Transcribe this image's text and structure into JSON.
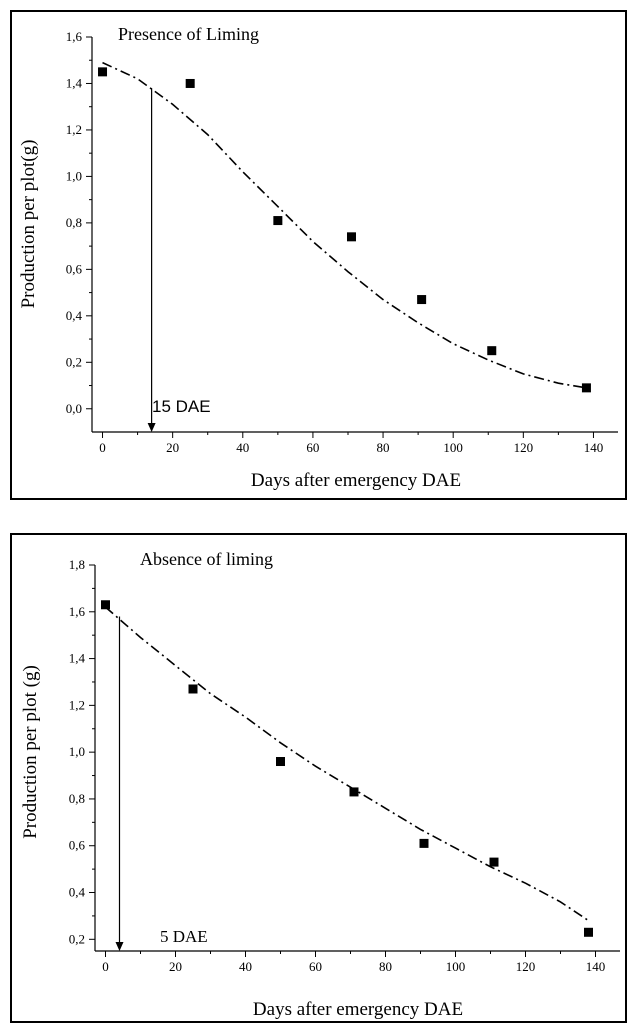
{
  "chart_data": [
    {
      "type": "scatter",
      "title": "Presence of Liming",
      "xlabel": "Days after emergency DAE",
      "ylabel": "Production per plot(g)",
      "xlim": [
        -3,
        147
      ],
      "ylim": [
        -0.1,
        1.6
      ],
      "xticks": [
        "0",
        "20",
        "40",
        "60",
        "80",
        "100",
        "120",
        "140"
      ],
      "yticks": [
        "0,0",
        "0,2",
        "0,4",
        "0,6",
        "0,8",
        "1,0",
        "1,2",
        "1,4",
        "1,6"
      ],
      "series": [
        {
          "x": [
            0,
            25,
            50,
            71,
            91,
            111,
            138
          ],
          "y": [
            1.45,
            1.4,
            0.81,
            0.74,
            0.47,
            0.25,
            0.09
          ]
        }
      ],
      "fit_curve": {
        "x": [
          0,
          10,
          20,
          30,
          40,
          50,
          60,
          70,
          80,
          90,
          100,
          110,
          120,
          130,
          138
        ],
        "y": [
          1.49,
          1.42,
          1.31,
          1.18,
          1.02,
          0.87,
          0.72,
          0.59,
          0.47,
          0.37,
          0.28,
          0.21,
          0.15,
          0.11,
          0.09
        ]
      },
      "annotation": {
        "label": "15 DAE",
        "x": 14
      }
    },
    {
      "type": "scatter",
      "title": "Absence of liming",
      "xlabel": "Days after emergency DAE",
      "ylabel": "Production per plot  (g)",
      "xlim": [
        -3,
        147
      ],
      "ylim": [
        0.15,
        1.8
      ],
      "xticks": [
        "0",
        "20",
        "40",
        "60",
        "80",
        "100",
        "120",
        "140"
      ],
      "yticks": [
        "0,2",
        "0,4",
        "0,6",
        "0,8",
        "1,0",
        "1,2",
        "1,4",
        "1,6",
        "1,8"
      ],
      "series": [
        {
          "x": [
            0,
            25,
            50,
            71,
            91,
            111,
            138
          ],
          "y": [
            1.63,
            1.27,
            0.96,
            0.83,
            0.61,
            0.53,
            0.23
          ]
        }
      ],
      "fit_curve": {
        "x": [
          0,
          10,
          20,
          30,
          40,
          50,
          60,
          70,
          80,
          90,
          100,
          110,
          120,
          130,
          138
        ],
        "y": [
          1.62,
          1.49,
          1.37,
          1.25,
          1.15,
          1.04,
          0.94,
          0.85,
          0.76,
          0.67,
          0.59,
          0.51,
          0.44,
          0.36,
          0.28
        ]
      },
      "annotation": {
        "label": "5 DAE",
        "x": 4
      }
    }
  ]
}
